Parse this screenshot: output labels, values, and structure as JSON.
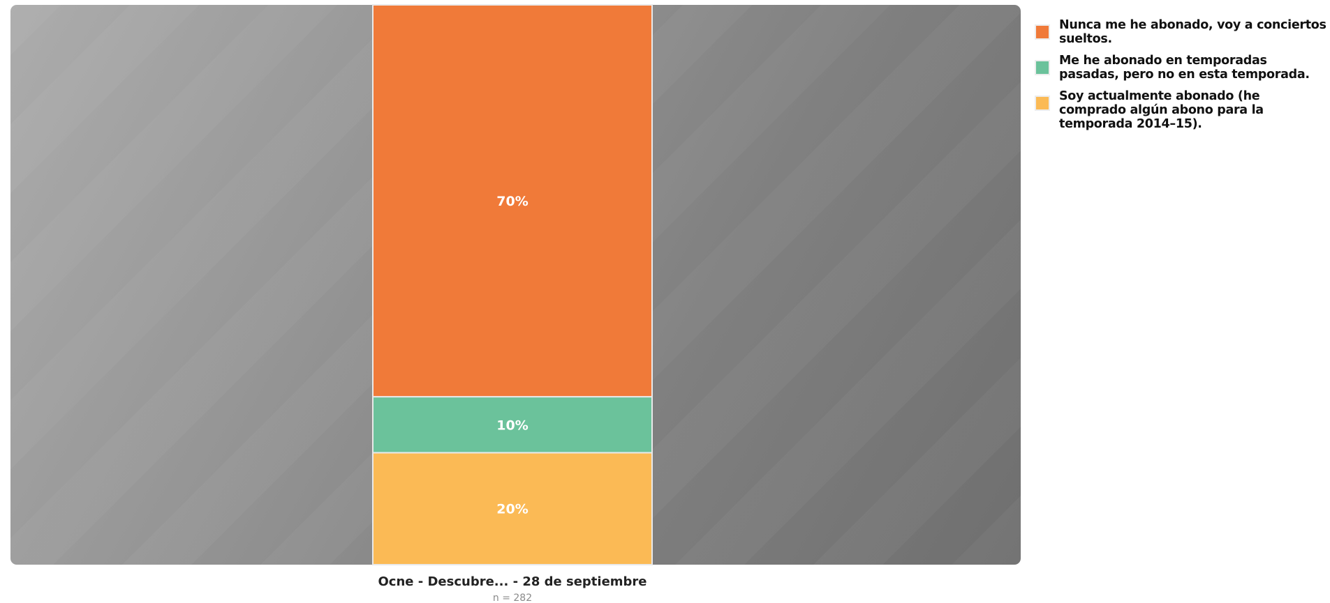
{
  "chart_data": {
    "type": "bar",
    "stacked": true,
    "orientation": "vertical",
    "categories": [
      "Ocne - Descubre... - 28 de septiembre"
    ],
    "series": [
      {
        "name": "Soy actualmente abonado (he comprado algún abono para la temporada 2014–15).",
        "values": [
          20
        ],
        "label": "20%",
        "color": "#fbba55"
      },
      {
        "name": "Me he abonado en temporadas pasadas, pero no en esta temporada.",
        "values": [
          10
        ],
        "label": "10%",
        "color": "#6bc29b"
      },
      {
        "name": "Nunca me he abonado, voy a conciertos sueltos.",
        "values": [
          70
        ],
        "label": "70%",
        "color": "#f07a39"
      }
    ],
    "ylim": [
      0,
      100
    ],
    "sample_size": "n = 282",
    "legend": {
      "placement": "right",
      "entries": [
        {
          "label": "Nunca me he abonado, voy a conciertos sueltos.",
          "color": "#f07a39"
        },
        {
          "label": "Me he abonado en temporadas pasadas, pero no en esta temporada.",
          "color": "#6bc29b"
        },
        {
          "label": "Soy actualmente abonado (he comprado algún abono para la temporada 2014–15).",
          "color": "#fbba55"
        }
      ]
    },
    "grid": false
  }
}
